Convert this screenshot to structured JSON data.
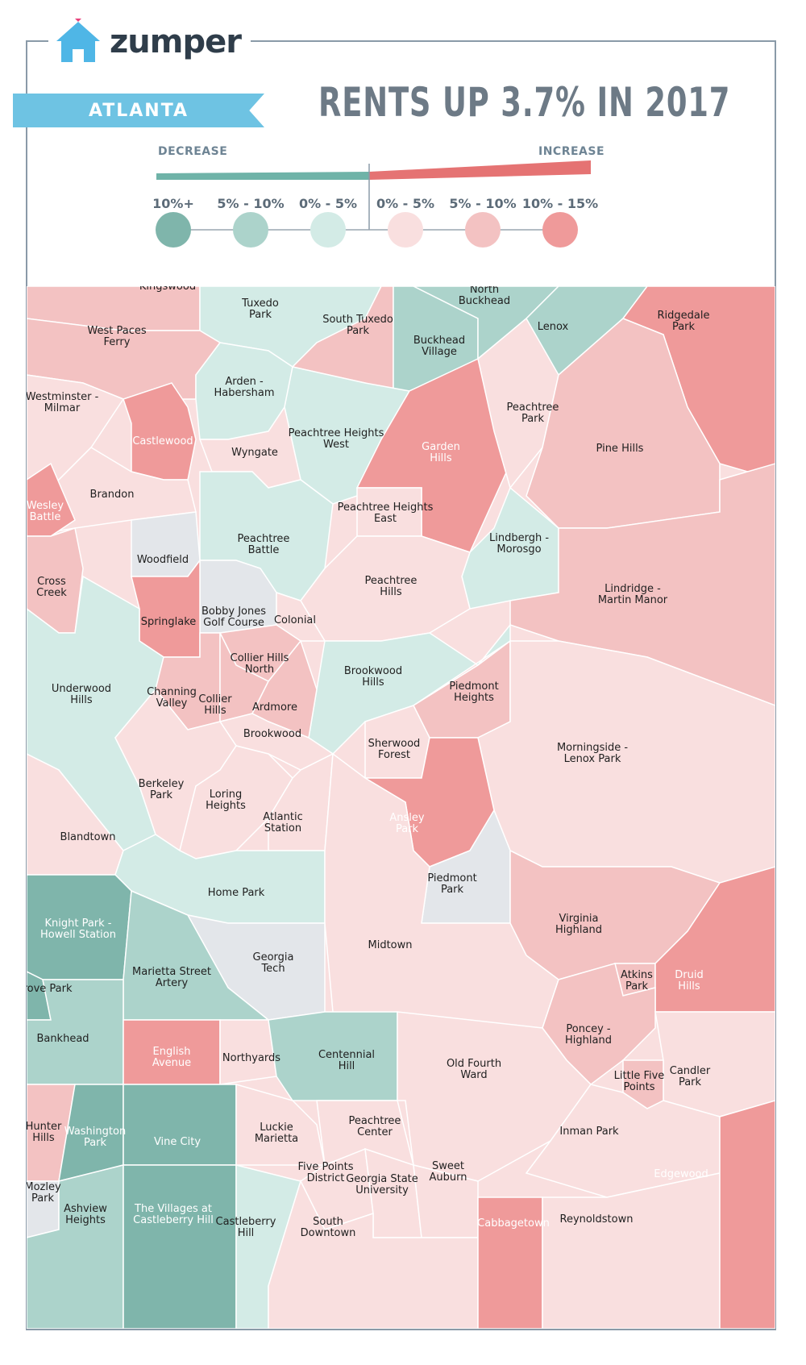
{
  "brand": {
    "name": "zumper"
  },
  "city": "ATLANTA",
  "headline": "RENTS UP 3.7% IN 2017",
  "legend": {
    "decrease_label": "DECREASE",
    "increase_label": "INCREASE",
    "bins": [
      {
        "label": "10%+",
        "color": "#7fb5ab"
      },
      {
        "label": "5% - 10%",
        "color": "#acd3cb"
      },
      {
        "label": "0% - 5%",
        "color": "#d3ebe6"
      },
      {
        "label": "0% - 5%",
        "color": "#f9dfdf"
      },
      {
        "label": "5% - 10%",
        "color": "#f3c2c2"
      },
      {
        "label": "10% - 15%",
        "color": "#ef9a9a"
      }
    ]
  },
  "neighborhoods": {
    "kingswood": "Kingswood",
    "tuxedo_park": "Tuxedo Park",
    "north_buckhead": "North Buckhead",
    "ridgedale_park": "Ridgedale Park",
    "west_paces_ferry": "West Paces Ferry",
    "south_tuxedo_park": "South Tuxedo Park",
    "buckhead_village": "Buckhead Village",
    "lenox": "Lenox",
    "westminster_milmar": "Westminster - Milmar",
    "arden_habersham": "Arden - Habersham",
    "peachtree_park": "Peachtree Park",
    "castlewood": "Castlewood",
    "peachtree_heights_west": "Peachtree Heights West",
    "garden_hills": "Garden Hills",
    "pine_hills": "Pine Hills",
    "wyngate": "Wyngate",
    "brandon": "Brandon",
    "wesley_battle": "Wesley Battle",
    "peachtree_heights_east": "Peachtree Heights East",
    "lindbergh_morosgo": "Lindbergh - Morosgo",
    "peachtree_battle": "Peachtree Battle",
    "woodfield": "Woodfield",
    "cross_creek": "Cross Creek",
    "peachtree_hills": "Peachtree Hills",
    "lindridge_martin_manor": "Lindridge - Martin Manor",
    "bobby_jones": "Bobby Jones Golf Course",
    "springlake": "Springlake",
    "colonial": "Colonial",
    "collier_hills_north": "Collier Hills North",
    "brookwood_hills": "Brookwood Hills",
    "underwood_hills": "Underwood Hills",
    "channing_valley": "Channing Valley",
    "collier_hills": "Collier Hills",
    "ardmore": "Ardmore",
    "piedmont_heights": "Piedmont Heights",
    "brookwood": "Brookwood",
    "sherwood_forest": "Sherwood Forest",
    "morningside": "Morningside - Lenox Park",
    "berkeley_park": "Berkeley Park",
    "loring_heights": "Loring Heights",
    "atlantic_station": "Atlantic Station",
    "ansley_park": "Ansley Park",
    "blandtown": "Blandtown",
    "piedmont_park": "Piedmont Park",
    "home_park": "Home Park",
    "knight_park": "Knight Park - Howell Station",
    "virginia_highland": "Virginia Highland",
    "midtown": "Midtown",
    "georgia_tech": "Georgia Tech",
    "marietta_street": "Marietta Street Artery",
    "grove_park": "Grove Park",
    "atkins_park": "Atkins Park",
    "druid_hills": "Druid Hills",
    "bankhead": "Bankhead",
    "poncey_highland": "Poncey - Highland",
    "english_avenue": "English Avenue",
    "northyards": "Northyards",
    "centennial_hill": "Centennial Hill",
    "old_fourth_ward": "Old Fourth Ward",
    "candler_park": "Candler Park",
    "little_five_points": "Little Five Points",
    "hunter_hills": "Hunter Hills",
    "washington_park": "Washington Park",
    "vine_city": "Vine City",
    "luckie_marietta": "Luckie Marietta",
    "peachtree_center": "Peachtree Center",
    "inman_park": "Inman Park",
    "five_points": "Five Points District",
    "georgia_state": "Georgia State University",
    "sweet_auburn": "Sweet Auburn",
    "mozley_park": "Mozley Park",
    "ashview_heights": "Ashview Heights",
    "villages_castleberry": "The Villages at Castleberry Hill",
    "castleberry_hill": "Castleberry Hill",
    "south_downtown": "South Downtown",
    "cabbagetown": "Cabbagetown",
    "reynoldstown": "Reynoldstown",
    "edgewood": "Edgewood"
  }
}
